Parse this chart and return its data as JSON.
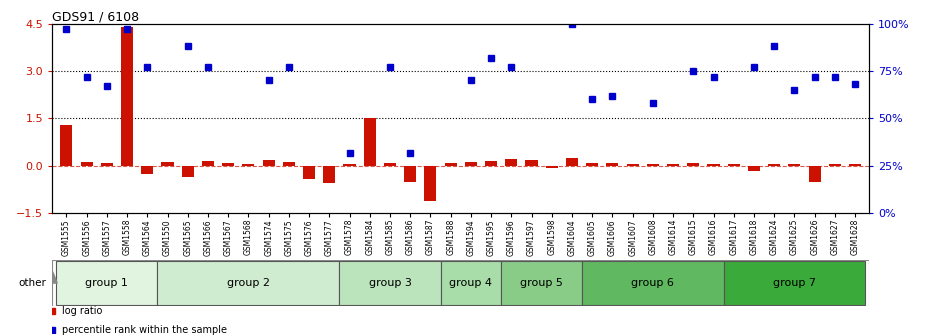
{
  "title": "GDS91 / 6108",
  "samples": [
    "GSM1555",
    "GSM1556",
    "GSM1557",
    "GSM1558",
    "GSM1564",
    "GSM1550",
    "GSM1565",
    "GSM1566",
    "GSM1567",
    "GSM1568",
    "GSM1574",
    "GSM1575",
    "GSM1576",
    "GSM1577",
    "GSM1578",
    "GSM1584",
    "GSM1585",
    "GSM1586",
    "GSM1587",
    "GSM1588",
    "GSM1594",
    "GSM1595",
    "GSM1596",
    "GSM1597",
    "GSM1598",
    "GSM1604",
    "GSM1605",
    "GSM1606",
    "GSM1607",
    "GSM1608",
    "GSM1614",
    "GSM1615",
    "GSM1616",
    "GSM1617",
    "GSM1618",
    "GSM1624",
    "GSM1625",
    "GSM1626",
    "GSM1627",
    "GSM1628"
  ],
  "log_ratio": [
    1.3,
    0.12,
    0.08,
    4.4,
    -0.25,
    0.13,
    -0.35,
    0.15,
    0.08,
    0.05,
    0.18,
    0.12,
    -0.4,
    -0.55,
    0.07,
    1.5,
    0.1,
    -0.5,
    -1.1,
    0.08,
    0.12,
    0.17,
    0.22,
    0.2,
    -0.08,
    0.25,
    0.1,
    0.08,
    0.07,
    0.07,
    0.06,
    0.08,
    0.07,
    0.07,
    -0.15,
    0.07,
    0.07,
    -0.5,
    0.07,
    0.06
  ],
  "percentile_rank_pct": [
    97,
    72,
    67,
    97,
    77,
    null,
    88,
    77,
    null,
    null,
    70,
    77,
    null,
    null,
    32,
    null,
    77,
    32,
    null,
    null,
    70,
    82,
    77,
    null,
    null,
    100,
    60,
    62,
    null,
    58,
    null,
    75,
    72,
    null,
    77,
    88,
    65,
    72,
    72,
    68
  ],
  "groups": [
    {
      "name": "group 1",
      "start": 0,
      "end": 4,
      "color": "#e0f4e0"
    },
    {
      "name": "group 2",
      "start": 5,
      "end": 13,
      "color": "#d0ecd0"
    },
    {
      "name": "group 3",
      "start": 14,
      "end": 18,
      "color": "#bce4bc"
    },
    {
      "name": "group 4",
      "start": 19,
      "end": 21,
      "color": "#a8dca8"
    },
    {
      "name": "group 5",
      "start": 22,
      "end": 25,
      "color": "#88cc88"
    },
    {
      "name": "group 6",
      "start": 26,
      "end": 32,
      "color": "#60b860"
    },
    {
      "name": "group 7",
      "start": 33,
      "end": 39,
      "color": "#3aaa3a"
    }
  ],
  "bar_color": "#cc1100",
  "dot_color": "#0000cc",
  "ylim_left": [
    -1.5,
    4.5
  ],
  "ylim_right": [
    0,
    100
  ],
  "yticks_left": [
    -1.5,
    0,
    1.5,
    3.0,
    4.5
  ],
  "yticks_right": [
    0,
    25,
    50,
    75,
    100
  ],
  "hline_zero_color": "#cc1100",
  "hline_dotted_vals": [
    1.5,
    3.0
  ],
  "background_color": "#ffffff",
  "other_label": "other",
  "legend_items": [
    {
      "label": "log ratio",
      "color": "#cc1100"
    },
    {
      "label": "percentile rank within the sample",
      "color": "#0000cc"
    }
  ]
}
